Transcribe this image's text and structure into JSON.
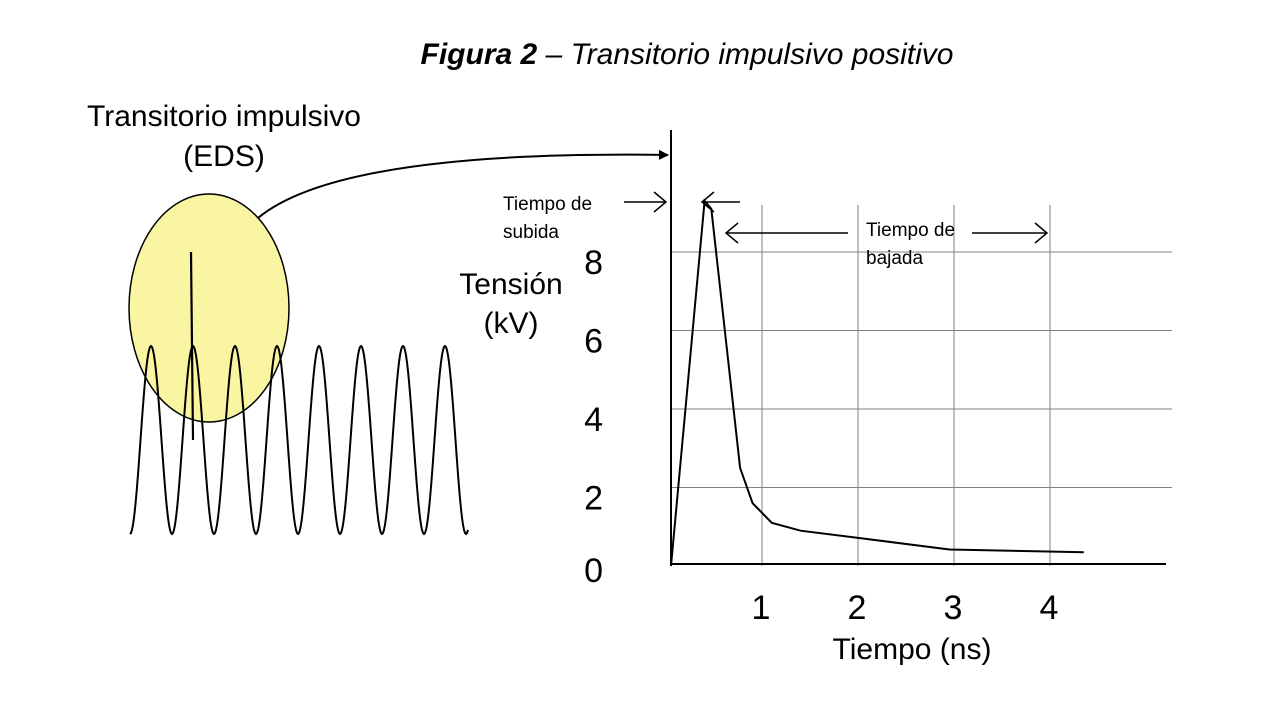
{
  "figure": {
    "title_bold": "Figura 2",
    "title_rest": " – Transitorio impulsivo positivo"
  },
  "left": {
    "label_line1": "Transitorio impulsivo",
    "label_line2": "(EDS)"
  },
  "annotations": {
    "rise_line1": "Tiempo de",
    "rise_line2": "subida",
    "fall_line1": "Tiempo de",
    "fall_line2": "bajada"
  },
  "chart_data": {
    "type": "line",
    "title": "",
    "xlabel": "Tiempo (ns)",
    "ylabel_line1": "Tensión",
    "ylabel_line2": "(kV)",
    "xlim": [
      0,
      4.5
    ],
    "ylim": [
      0,
      9
    ],
    "x_ticks": [
      "1",
      "2",
      "3",
      "4"
    ],
    "y_ticks": [
      "0",
      "2",
      "4",
      "6",
      "8"
    ],
    "x_tick_values": [
      1,
      2,
      3,
      4
    ],
    "y_tick_values": [
      0,
      2,
      4,
      6,
      8
    ],
    "grid": true,
    "series": [
      {
        "x": [
          0,
          0.35,
          0.42,
          0.72,
          0.85,
          1.05,
          1.35,
          2.0,
          2.9,
          4.3
        ],
        "y": [
          0,
          9.3,
          9.1,
          2.5,
          1.6,
          1.1,
          0.9,
          0.7,
          0.42,
          0.35
        ]
      }
    ],
    "colors": {
      "line": "#000000",
      "grid": "#808080",
      "highlight": "#faf5a3"
    }
  }
}
